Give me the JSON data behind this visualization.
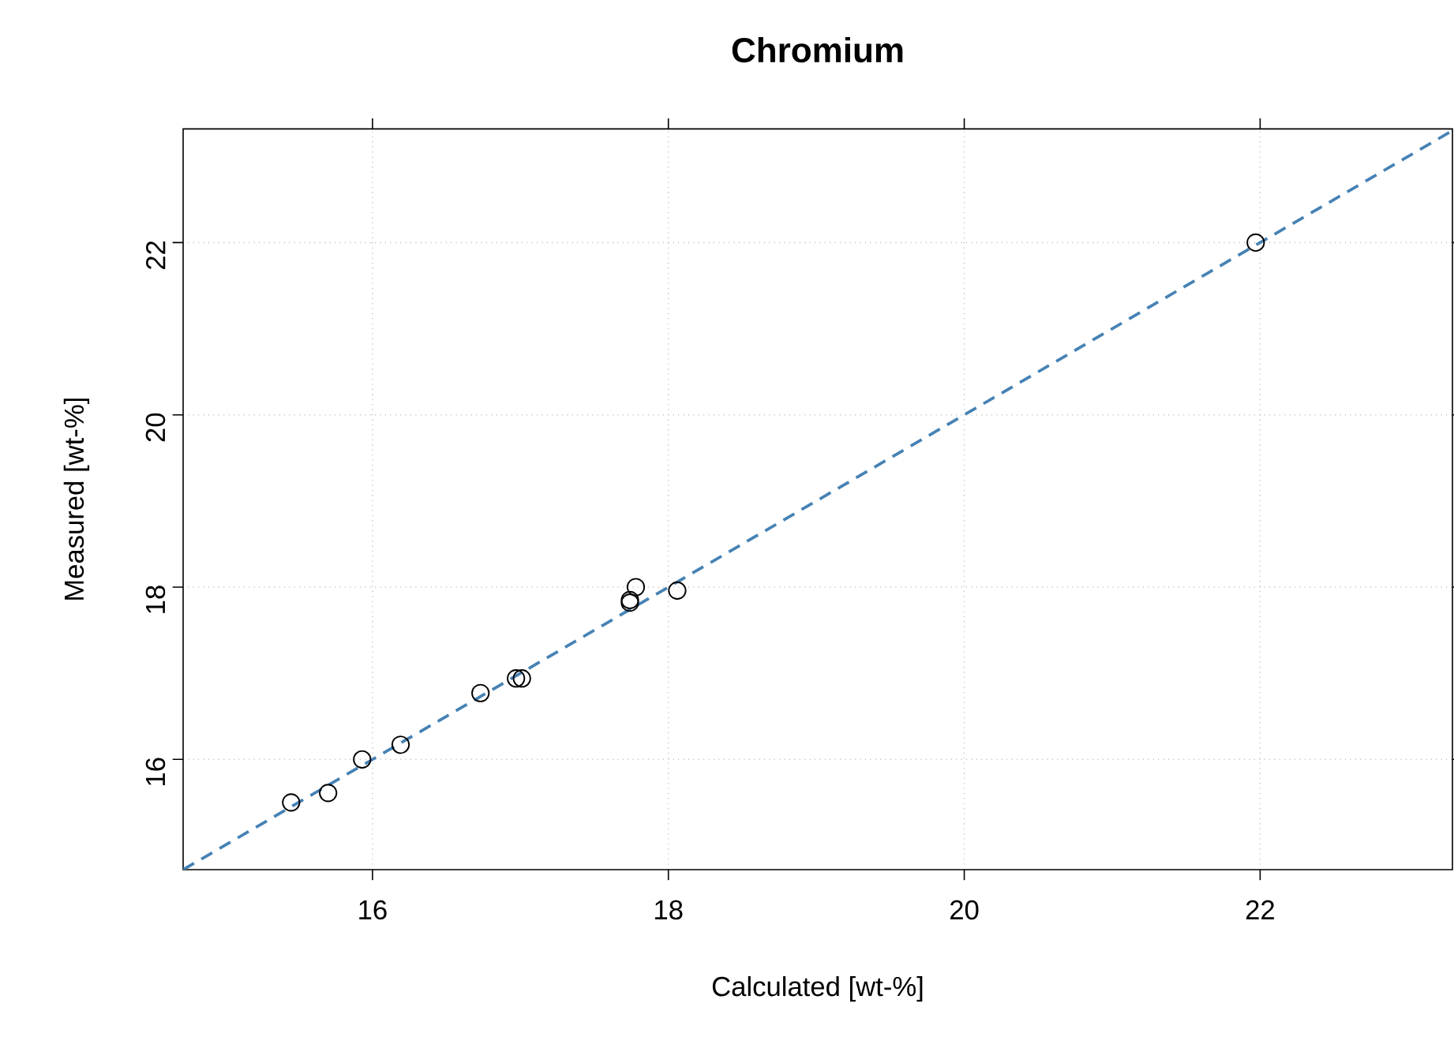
{
  "chart_data": {
    "type": "scatter",
    "title": "Chromium",
    "xlabel": "Calculated [wt-%]",
    "ylabel": "Measured [wt-%]",
    "xlim": [
      14.72,
      23.3
    ],
    "ylim": [
      14.72,
      23.32
    ],
    "xticks": [
      16,
      18,
      20,
      22
    ],
    "yticks": [
      16,
      18,
      20,
      22
    ],
    "grid": true,
    "series": [
      {
        "marker": "circle",
        "color": "#000000",
        "x": [
          15.45,
          15.7,
          15.93,
          16.19,
          16.73,
          16.97,
          17.01,
          17.74,
          17.74,
          17.78,
          18.06,
          21.97
        ],
        "values": [
          15.5,
          15.61,
          16.0,
          16.17,
          16.77,
          16.94,
          16.94,
          17.85,
          17.82,
          18.0,
          17.96,
          22.0
        ]
      },
      {
        "type": "line",
        "color": "#4682b4",
        "line_style": "dashed",
        "x": [
          14.72,
          23.3
        ],
        "values": [
          14.72,
          23.3
        ]
      }
    ]
  }
}
